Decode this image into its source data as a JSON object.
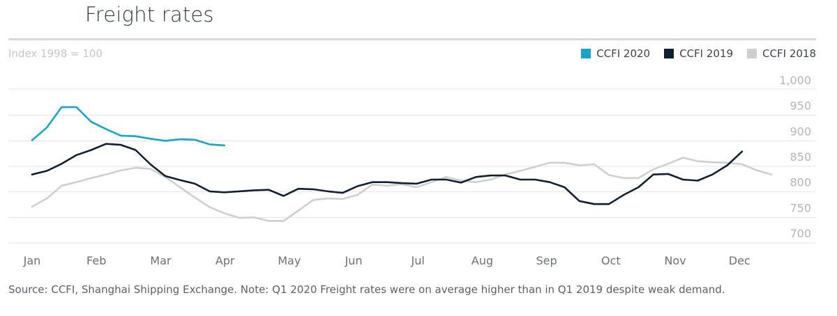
{
  "header": {
    "title": "Freight rates",
    "unit_label": "Index 1998 = 100"
  },
  "footer": {
    "source": "Source: CCFI, Shanghai Shipping Exchange. Note: Q1 2020 Freight rates were on average higher than in Q1 2019 despite weak demand."
  },
  "chart_data": {
    "type": "line",
    "grid": true,
    "legend_position": "top-right",
    "ylim": [
      680,
      1010
    ],
    "y_ticks": [
      700,
      750,
      800,
      850,
      900,
      950,
      1000
    ],
    "y_tick_labels": [
      "700",
      "750",
      "800",
      "850",
      "900",
      "950",
      "1,000"
    ],
    "x_ticks": [
      0,
      1,
      2,
      3,
      4,
      5,
      6,
      7,
      8,
      9,
      10,
      11
    ],
    "x_tick_labels": [
      "Jan",
      "Feb",
      "Mar",
      "Apr",
      "May",
      "Jun",
      "Jul",
      "Aug",
      "Sep",
      "Oct",
      "Nov",
      "Dec"
    ],
    "series": [
      {
        "name": "CCFI 2020",
        "color": "#1aa3cc",
        "points": [
          [
            0.0,
            882
          ],
          [
            0.23,
            907
          ],
          [
            0.46,
            947
          ],
          [
            0.69,
            947
          ],
          [
            0.92,
            918
          ],
          [
            1.15,
            904
          ],
          [
            1.38,
            891
          ],
          [
            1.61,
            890
          ],
          [
            1.84,
            885
          ],
          [
            2.07,
            881
          ],
          [
            2.3,
            884
          ],
          [
            2.53,
            883
          ],
          [
            2.76,
            874
          ],
          [
            2.99,
            872
          ]
        ]
      },
      {
        "name": "CCFI 2019",
        "color": "#0f2035",
        "points": [
          [
            0.0,
            815
          ],
          [
            0.23,
            822
          ],
          [
            0.46,
            836
          ],
          [
            0.69,
            853
          ],
          [
            0.92,
            863
          ],
          [
            1.15,
            875
          ],
          [
            1.38,
            873
          ],
          [
            1.61,
            863
          ],
          [
            1.84,
            835
          ],
          [
            2.07,
            812
          ],
          [
            2.3,
            804
          ],
          [
            2.53,
            797
          ],
          [
            2.76,
            782
          ],
          [
            2.99,
            780
          ],
          [
            3.22,
            782
          ],
          [
            3.45,
            784
          ],
          [
            3.68,
            785
          ],
          [
            3.91,
            773
          ],
          [
            4.14,
            787
          ],
          [
            4.37,
            786
          ],
          [
            4.6,
            782
          ],
          [
            4.83,
            779
          ],
          [
            5.06,
            792
          ],
          [
            5.29,
            800
          ],
          [
            5.52,
            800
          ],
          [
            5.75,
            798
          ],
          [
            5.98,
            797
          ],
          [
            6.21,
            805
          ],
          [
            6.44,
            805
          ],
          [
            6.67,
            799
          ],
          [
            6.9,
            810
          ],
          [
            7.13,
            813
          ],
          [
            7.36,
            813
          ],
          [
            7.59,
            805
          ],
          [
            7.82,
            805
          ],
          [
            8.05,
            800
          ],
          [
            8.28,
            790
          ],
          [
            8.51,
            763
          ],
          [
            8.74,
            757
          ],
          [
            8.97,
            757
          ],
          [
            9.2,
            775
          ],
          [
            9.43,
            790
          ],
          [
            9.66,
            815
          ],
          [
            9.89,
            816
          ],
          [
            10.12,
            805
          ],
          [
            10.35,
            803
          ],
          [
            10.58,
            815
          ],
          [
            10.81,
            833
          ],
          [
            11.04,
            860
          ]
        ]
      },
      {
        "name": "CCFI 2018",
        "color": "#cfcfcf",
        "points": [
          [
            0.0,
            752
          ],
          [
            0.23,
            768
          ],
          [
            0.46,
            793
          ],
          [
            0.69,
            800
          ],
          [
            0.92,
            808
          ],
          [
            1.15,
            815
          ],
          [
            1.38,
            823
          ],
          [
            1.61,
            828
          ],
          [
            1.84,
            826
          ],
          [
            2.07,
            810
          ],
          [
            2.3,
            790
          ],
          [
            2.53,
            770
          ],
          [
            2.76,
            751
          ],
          [
            2.99,
            739
          ],
          [
            3.22,
            730
          ],
          [
            3.45,
            731
          ],
          [
            3.68,
            724
          ],
          [
            3.91,
            724
          ],
          [
            4.14,
            744
          ],
          [
            4.37,
            765
          ],
          [
            4.6,
            768
          ],
          [
            4.83,
            767
          ],
          [
            5.06,
            775
          ],
          [
            5.29,
            795
          ],
          [
            5.52,
            793
          ],
          [
            5.75,
            796
          ],
          [
            5.98,
            790
          ],
          [
            6.21,
            800
          ],
          [
            6.44,
            810
          ],
          [
            6.67,
            803
          ],
          [
            6.9,
            800
          ],
          [
            7.13,
            805
          ],
          [
            7.36,
            815
          ],
          [
            7.59,
            822
          ],
          [
            7.82,
            830
          ],
          [
            8.05,
            838
          ],
          [
            8.28,
            838
          ],
          [
            8.51,
            833
          ],
          [
            8.74,
            835
          ],
          [
            8.97,
            814
          ],
          [
            9.2,
            808
          ],
          [
            9.43,
            808
          ],
          [
            9.66,
            825
          ],
          [
            9.89,
            836
          ],
          [
            10.12,
            848
          ],
          [
            10.35,
            841
          ],
          [
            10.58,
            839
          ],
          [
            10.81,
            838
          ],
          [
            11.04,
            835
          ],
          [
            11.27,
            823
          ],
          [
            11.5,
            815
          ]
        ]
      }
    ]
  }
}
